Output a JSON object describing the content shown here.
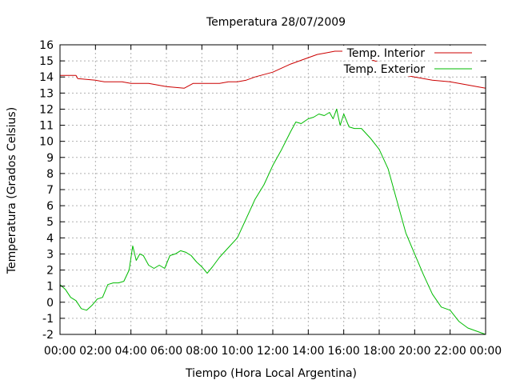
{
  "chart_data": {
    "type": "line",
    "title": "Temperatura 28/07/2009",
    "xlabel": "Tiempo (Hora Local Argentina)",
    "ylabel": "Temperatura (Grados Celsius)",
    "xlim": [
      0,
      24
    ],
    "ylim": [
      -2,
      16
    ],
    "x_unit": "hours",
    "x_ticks": [
      {
        "v": 0,
        "label": "00:00"
      },
      {
        "v": 2,
        "label": "02:00"
      },
      {
        "v": 4,
        "label": "04:00"
      },
      {
        "v": 6,
        "label": "06:00"
      },
      {
        "v": 8,
        "label": "08:00"
      },
      {
        "v": 10,
        "label": "10:00"
      },
      {
        "v": 12,
        "label": "12:00"
      },
      {
        "v": 14,
        "label": "14:00"
      },
      {
        "v": 16,
        "label": "16:00"
      },
      {
        "v": 18,
        "label": "18:00"
      },
      {
        "v": 20,
        "label": "20:00"
      },
      {
        "v": 22,
        "label": "22:00"
      },
      {
        "v": 24,
        "label": "00:00"
      }
    ],
    "y_ticks": [
      -2,
      -1,
      0,
      1,
      2,
      3,
      4,
      5,
      6,
      7,
      8,
      9,
      10,
      11,
      12,
      13,
      14,
      15,
      16
    ],
    "grid": true,
    "legend_position": "top-right",
    "series": [
      {
        "name": "Temp. Interior",
        "color": "#cc0000",
        "x": [
          0,
          0.9,
          1.0,
          2.0,
          2.5,
          3.5,
          4.0,
          5.0,
          5.5,
          6.0,
          7.0,
          7.5,
          8.0,
          9.0,
          9.5,
          10.0,
          10.5,
          11.0,
          12.0,
          13.0,
          14.0,
          14.5,
          15.0,
          15.5,
          16.0,
          16.5,
          17.0,
          17.5,
          18.0,
          18.5,
          19.0,
          19.5,
          20.0,
          21.0,
          22.0,
          23.0,
          24.0
        ],
        "y": [
          14.1,
          14.1,
          13.9,
          13.8,
          13.7,
          13.7,
          13.6,
          13.6,
          13.5,
          13.4,
          13.3,
          13.6,
          13.6,
          13.6,
          13.7,
          13.7,
          13.8,
          14.0,
          14.3,
          14.8,
          15.2,
          15.4,
          15.5,
          15.6,
          15.6,
          15.5,
          15.4,
          15.1,
          14.9,
          14.6,
          14.3,
          14.1,
          14.0,
          13.8,
          13.7,
          13.5,
          13.3
        ]
      },
      {
        "name": "Temp. Exterior",
        "color": "#00bb00",
        "x": [
          0,
          0.3,
          0.6,
          0.9,
          1.2,
          1.5,
          1.8,
          2.1,
          2.4,
          2.7,
          3.0,
          3.3,
          3.6,
          3.9,
          4.1,
          4.3,
          4.5,
          4.7,
          5.0,
          5.3,
          5.6,
          5.9,
          6.2,
          6.5,
          6.8,
          7.1,
          7.4,
          7.7,
          8.0,
          8.3,
          8.6,
          9.0,
          9.5,
          10.0,
          10.5,
          11.0,
          11.5,
          12.0,
          12.5,
          13.0,
          13.3,
          13.6,
          14.0,
          14.3,
          14.6,
          14.9,
          15.2,
          15.4,
          15.6,
          15.8,
          16.0,
          16.3,
          16.6,
          17.0,
          17.5,
          18.0,
          18.5,
          19.0,
          19.5,
          20.0,
          20.5,
          21.0,
          21.5,
          22.0,
          22.5,
          23.0,
          23.5,
          24.0
        ],
        "y": [
          1.1,
          0.8,
          0.3,
          0.1,
          -0.4,
          -0.5,
          -0.2,
          0.2,
          0.3,
          1.1,
          1.2,
          1.2,
          1.3,
          2.0,
          3.5,
          2.6,
          3.0,
          2.9,
          2.3,
          2.1,
          2.3,
          2.1,
          2.9,
          3.0,
          3.2,
          3.1,
          2.9,
          2.5,
          2.2,
          1.8,
          2.2,
          2.8,
          3.4,
          4.0,
          5.2,
          6.4,
          7.3,
          8.5,
          9.5,
          10.6,
          11.2,
          11.1,
          11.4,
          11.5,
          11.7,
          11.6,
          11.8,
          11.4,
          12.0,
          11.0,
          11.7,
          10.9,
          10.8,
          10.8,
          10.2,
          9.5,
          8.3,
          6.3,
          4.3,
          3.0,
          1.7,
          0.5,
          -0.3,
          -0.5,
          -1.2,
          -1.6,
          -1.8,
          -2.0
        ]
      }
    ]
  }
}
